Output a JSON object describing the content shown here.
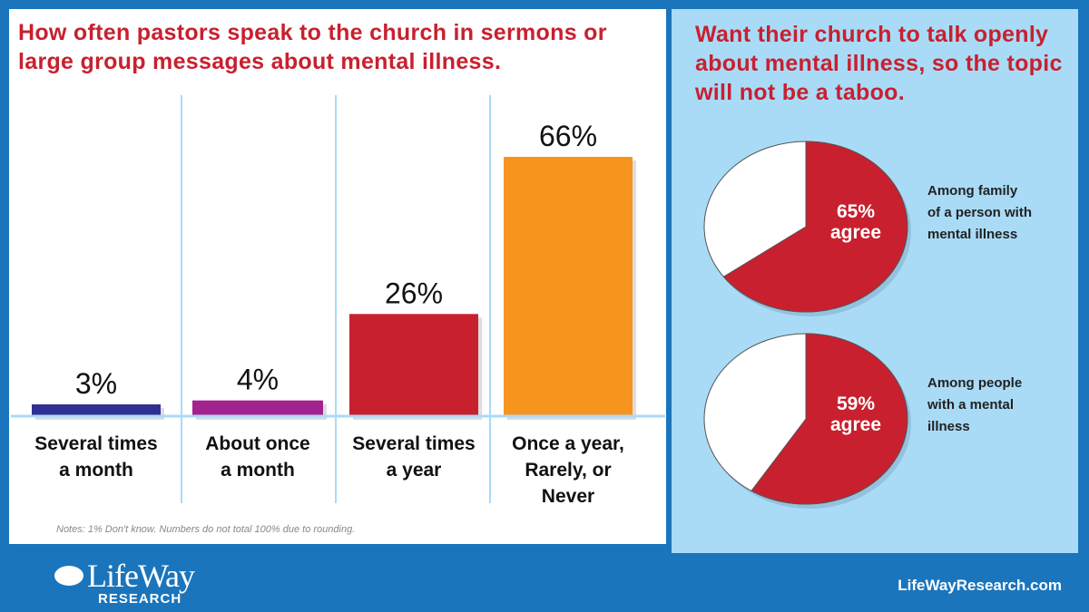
{
  "chart_data": [
    {
      "type": "bar",
      "title": "How often pastors speak to the church in sermons or large group messages about mental illness.",
      "categories": [
        "Several times a month",
        "About once a month",
        "Several times a year",
        "Once a year, Rarely, or Never"
      ],
      "category_lines": [
        [
          "Several times",
          "a month"
        ],
        [
          "About once",
          "a month"
        ],
        [
          "Several times",
          "a year"
        ],
        [
          "Once a year,",
          "Rarely, or",
          "Never"
        ]
      ],
      "values": [
        3,
        4,
        26,
        66
      ],
      "value_labels": [
        "3%",
        "4%",
        "26%",
        "66%"
      ],
      "colors": [
        "#2e3192",
        "#a3238e",
        "#c8202f",
        "#f7941d"
      ],
      "ylim": [
        0,
        70
      ],
      "note": "Notes: 1% Don't know. Numbers do not total 100% due to rounding."
    },
    {
      "type": "pie",
      "title": "Want their church to talk openly about mental illness, so the topic will not be a taboo.",
      "pies": [
        {
          "value": 65,
          "label_pct": "65%",
          "label_word": "agree",
          "caption": [
            "Among family",
            "of a person with",
            "mental illness"
          ]
        },
        {
          "value": 59,
          "label_pct": "59%",
          "label_word": "agree",
          "caption": [
            "Among people",
            "with a mental",
            "illness"
          ]
        }
      ],
      "colors": {
        "agree": "#c8202f",
        "rest": "#ffffff"
      }
    }
  ],
  "footer": {
    "logo_text": "LifeWay",
    "logo_sub": "RESEARCH",
    "url": "LifeWayResearch.com"
  }
}
